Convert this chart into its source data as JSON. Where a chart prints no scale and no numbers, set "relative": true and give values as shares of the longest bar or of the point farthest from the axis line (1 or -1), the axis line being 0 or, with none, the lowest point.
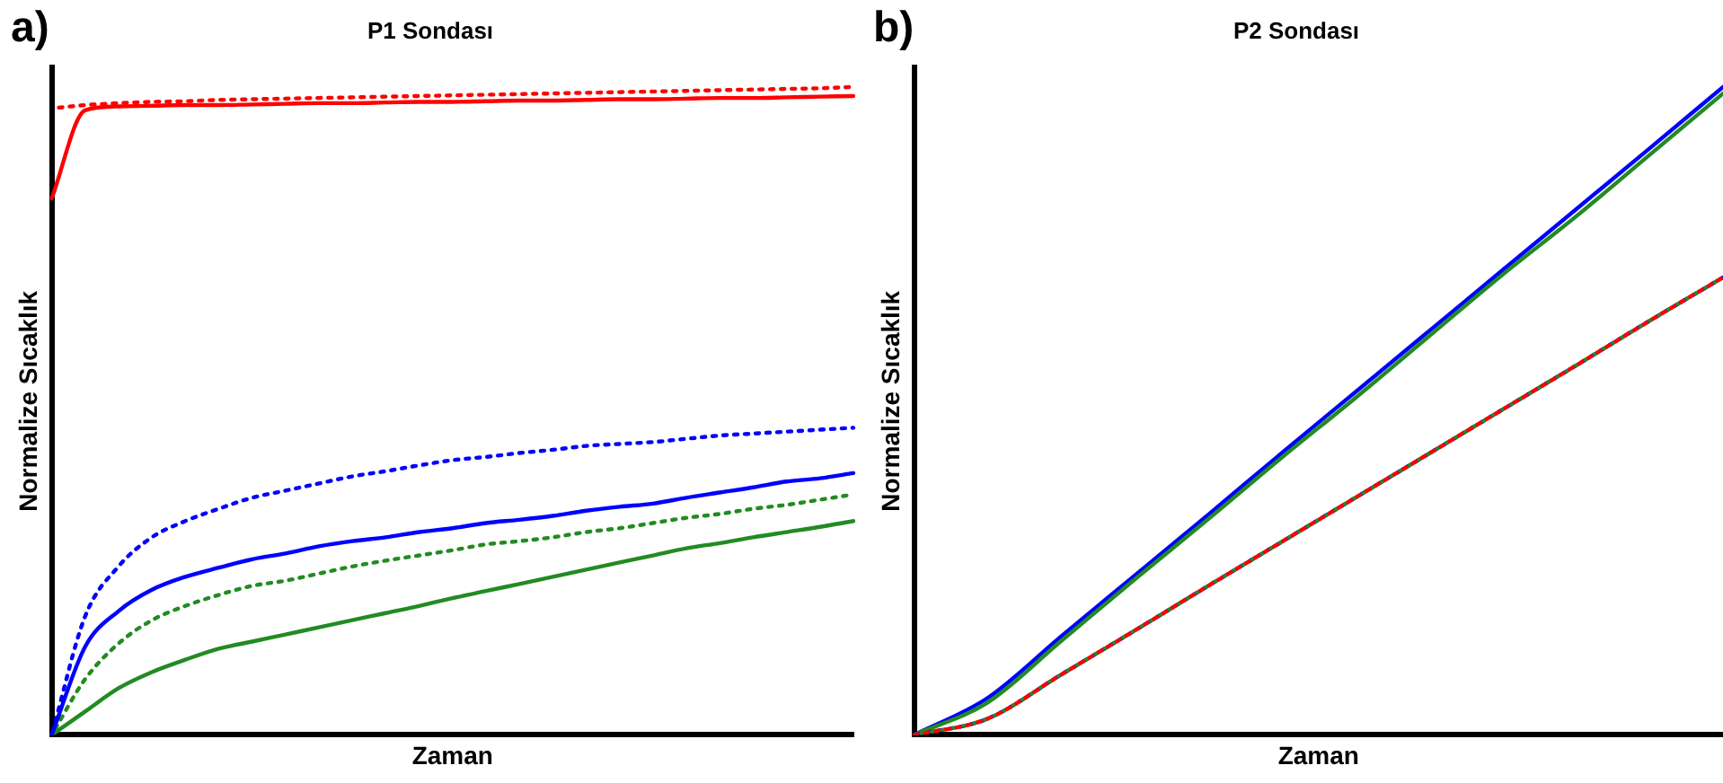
{
  "chart_data": [
    {
      "type": "line",
      "title": "P1 Sondası",
      "xlabel": "Zaman",
      "ylabel": "Normalize Sıcaklık",
      "annotations": [
        "a)"
      ],
      "relative": true,
      "tick_labels": false,
      "grid": false,
      "legend": false,
      "marker": "none",
      "categories": [
        null,
        null,
        null,
        null,
        null,
        null,
        null,
        null,
        null,
        null,
        null,
        null,
        null,
        null,
        null,
        null,
        null,
        null,
        null,
        null,
        null,
        null,
        null,
        null,
        null
      ],
      "series": [
        {
          "color": "#ff0000",
          "line_style": "solid",
          "values": [
            0.828,
            0.964,
            0.97,
            0.971,
            0.972,
            0.972,
            0.973,
            0.974,
            0.975,
            0.975,
            0.976,
            0.977,
            0.977,
            0.978,
            0.979,
            0.979,
            0.98,
            0.981,
            0.981,
            0.982,
            0.983,
            0.983,
            0.984,
            0.985,
            0.986
          ]
        },
        {
          "color": "#ff0000",
          "line_style": "dotted",
          "values": [
            0.967,
            0.972,
            0.975,
            0.977,
            0.978,
            0.98,
            0.981,
            0.982,
            0.983,
            0.984,
            0.985,
            0.986,
            0.987,
            0.988,
            0.989,
            0.99,
            0.991,
            0.992,
            0.993,
            0.994,
            0.995,
            0.996,
            0.997,
            0.998,
            1.0
          ]
        },
        {
          "color": "#0000ff",
          "line_style": "dotted",
          "values": [
            0,
            0.183,
            0.26,
            0.305,
            0.33,
            0.349,
            0.366,
            0.377,
            0.388,
            0.399,
            0.407,
            0.416,
            0.424,
            0.429,
            0.435,
            0.44,
            0.446,
            0.449,
            0.452,
            0.457,
            0.462,
            0.465,
            0.468,
            0.471,
            0.474
          ]
        },
        {
          "color": "#0000ff",
          "line_style": "solid",
          "values": [
            0,
            0.136,
            0.191,
            0.224,
            0.244,
            0.258,
            0.271,
            0.28,
            0.291,
            0.299,
            0.305,
            0.313,
            0.319,
            0.327,
            0.332,
            0.338,
            0.346,
            0.352,
            0.357,
            0.366,
            0.374,
            0.382,
            0.391,
            0.396,
            0.404
          ]
        },
        {
          "color": "#228b22",
          "line_style": "dotted",
          "values": [
            0,
            0.086,
            0.141,
            0.177,
            0.199,
            0.216,
            0.23,
            0.238,
            0.249,
            0.26,
            0.269,
            0.277,
            0.285,
            0.294,
            0.299,
            0.305,
            0.313,
            0.319,
            0.327,
            0.335,
            0.341,
            0.349,
            0.355,
            0.363,
            0.371
          ]
        },
        {
          "color": "#228b22",
          "line_style": "solid",
          "values": [
            0,
            0.036,
            0.072,
            0.097,
            0.116,
            0.133,
            0.144,
            0.155,
            0.166,
            0.177,
            0.188,
            0.199,
            0.211,
            0.222,
            0.233,
            0.244,
            0.255,
            0.266,
            0.277,
            0.288,
            0.296,
            0.305,
            0.313,
            0.321,
            0.33
          ]
        }
      ]
    },
    {
      "type": "line",
      "title": "P2 Sondası",
      "xlabel": "Zaman",
      "ylabel": "Normalize Sıcaklık",
      "annotations": [
        "b)"
      ],
      "relative": true,
      "tick_labels": false,
      "grid": false,
      "legend": false,
      "marker": "none",
      "categories": [
        null,
        null,
        null,
        null,
        null,
        null,
        null,
        null,
        null,
        null,
        null,
        null
      ],
      "series": [
        {
          "color": "#ff0000",
          "line_style": "dotted",
          "values": [
            0,
            0.025,
            0.093,
            0.161,
            0.23,
            0.298,
            0.366,
            0.434,
            0.502,
            0.57,
            0.639,
            0.706
          ]
        },
        {
          "color": "#228b22",
          "line_style": "dotted",
          "values": [
            0,
            0.025,
            0.093,
            0.161,
            0.23,
            0.298,
            0.366,
            0.434,
            0.502,
            0.57,
            0.639,
            0.706
          ]
        },
        {
          "color": "#0000ff",
          "line_style": "dotted",
          "values": [
            0,
            0.025,
            0.093,
            0.161,
            0.23,
            0.298,
            0.366,
            0.434,
            0.502,
            0.57,
            0.639,
            0.706
          ]
        },
        {
          "color": "#228b22",
          "line_style": "solid",
          "values": [
            0,
            0.05,
            0.145,
            0.24,
            0.333,
            0.428,
            0.52,
            0.615,
            0.71,
            0.8,
            0.895,
            0.99
          ]
        },
        {
          "color": "#0000ff",
          "line_style": "solid",
          "values": [
            0,
            0.057,
            0.152,
            0.246,
            0.34,
            0.435,
            0.529,
            0.623,
            0.717,
            0.811,
            0.905,
            1.0
          ]
        }
      ]
    }
  ]
}
